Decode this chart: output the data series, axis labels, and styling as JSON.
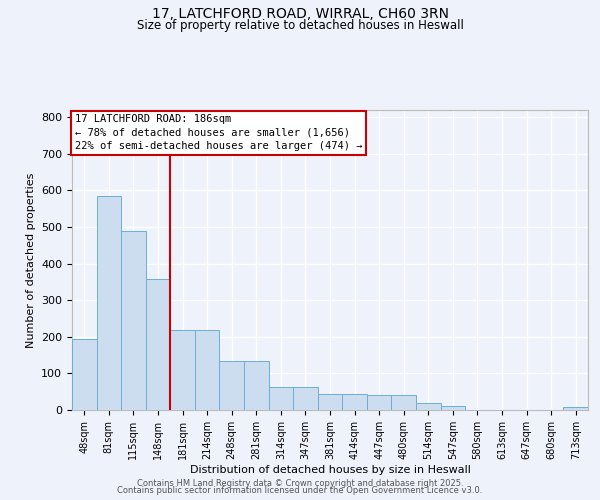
{
  "title1": "17, LATCHFORD ROAD, WIRRAL, CH60 3RN",
  "title2": "Size of property relative to detached houses in Heswall",
  "xlabel": "Distribution of detached houses by size in Heswall",
  "ylabel": "Number of detached properties",
  "categories": [
    "48sqm",
    "81sqm",
    "115sqm",
    "148sqm",
    "181sqm",
    "214sqm",
    "248sqm",
    "281sqm",
    "314sqm",
    "347sqm",
    "381sqm",
    "414sqm",
    "447sqm",
    "480sqm",
    "514sqm",
    "547sqm",
    "580sqm",
    "613sqm",
    "647sqm",
    "680sqm",
    "713sqm"
  ],
  "bar_heights": [
    195,
    585,
    490,
    357,
    218,
    218,
    135,
    135,
    62,
    62,
    45,
    45,
    40,
    40,
    20,
    12,
    0,
    0,
    0,
    0,
    8
  ],
  "bar_color": "#ccddf0",
  "bar_edge_color": "#6baed6",
  "property_line_index": 3.5,
  "property_line_color": "#cc0000",
  "annotation_text": "17 LATCHFORD ROAD: 186sqm\n← 78% of detached houses are smaller (1,656)\n22% of semi-detached houses are larger (474) →",
  "annotation_box_color": "#cc0000",
  "ylim": [
    0,
    820
  ],
  "yticks": [
    0,
    100,
    200,
    300,
    400,
    500,
    600,
    700,
    800
  ],
  "bg_color": "#eef2fb",
  "grid_color": "#ffffff",
  "footer_line1": "Contains HM Land Registry data © Crown copyright and database right 2025.",
  "footer_line2": "Contains public sector information licensed under the Open Government Licence v3.0."
}
